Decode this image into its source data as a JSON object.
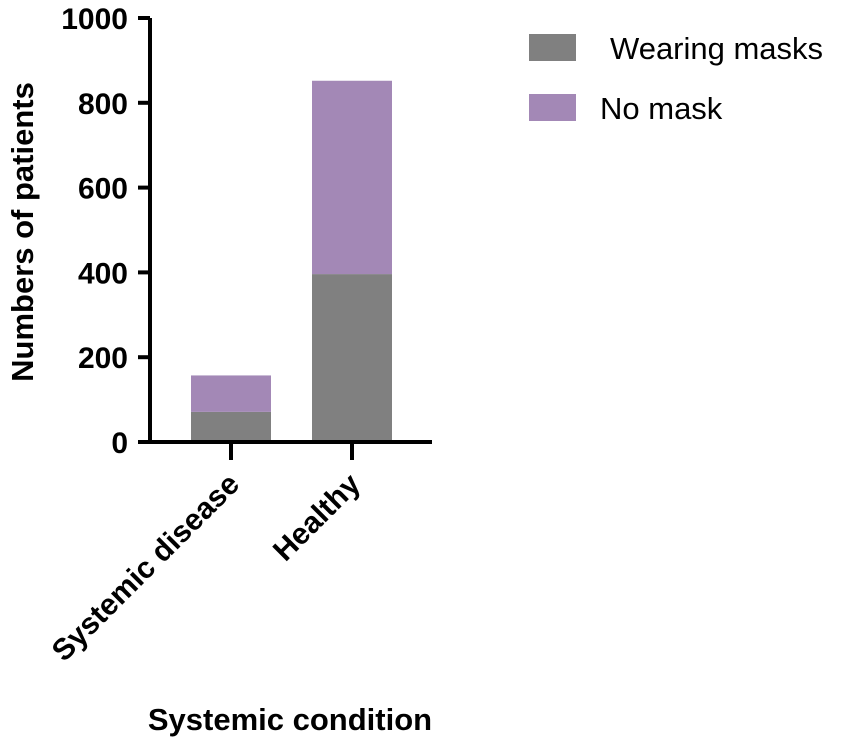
{
  "chart_data": {
    "type": "bar",
    "stacked": true,
    "categories": [
      "Systemic disease",
      "Healthy"
    ],
    "series": [
      {
        "name": "Wearing masks",
        "values": [
          71,
          396
        ],
        "color": "#808080"
      },
      {
        "name": "No mask",
        "values": [
          86,
          456
        ],
        "color": "#a388b6"
      }
    ],
    "xlabel": "Systemic condition",
    "ylabel": "Numbers of patients",
    "ylim": [
      0,
      1000
    ],
    "yticks": [
      0,
      200,
      400,
      600,
      800,
      1000
    ],
    "legend_position": "top-right",
    "grid": false
  }
}
